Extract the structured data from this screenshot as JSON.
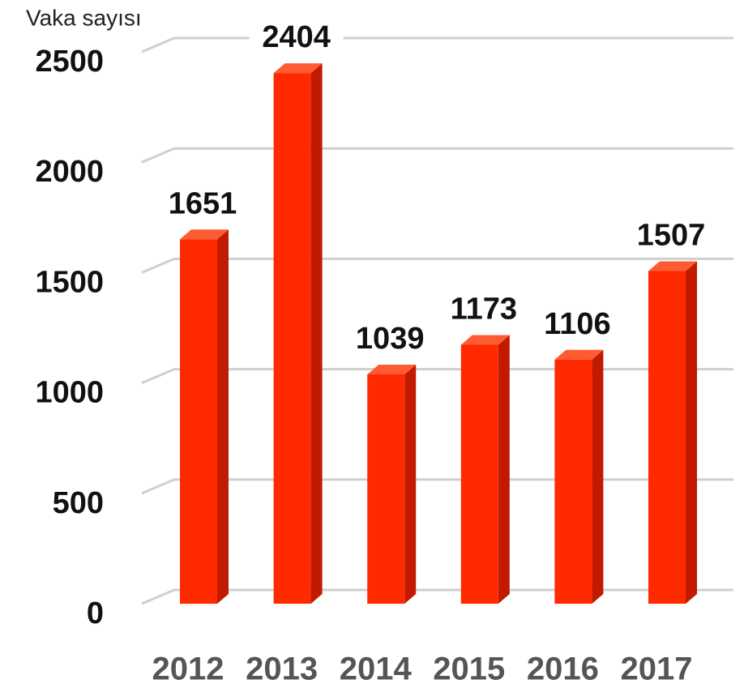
{
  "chart_data": {
    "type": "bar",
    "y_axis_label": "Vaka sayısı",
    "categories": [
      "2012",
      "2013",
      "2014",
      "2015",
      "2016",
      "2017"
    ],
    "values": [
      1651,
      2404,
      1039,
      1173,
      1106,
      1507
    ],
    "color": "#ff2a00",
    "ylim": [
      0,
      2500
    ],
    "yticks": [
      0,
      500,
      1000,
      1500,
      2000,
      2500
    ],
    "grid": true
  }
}
